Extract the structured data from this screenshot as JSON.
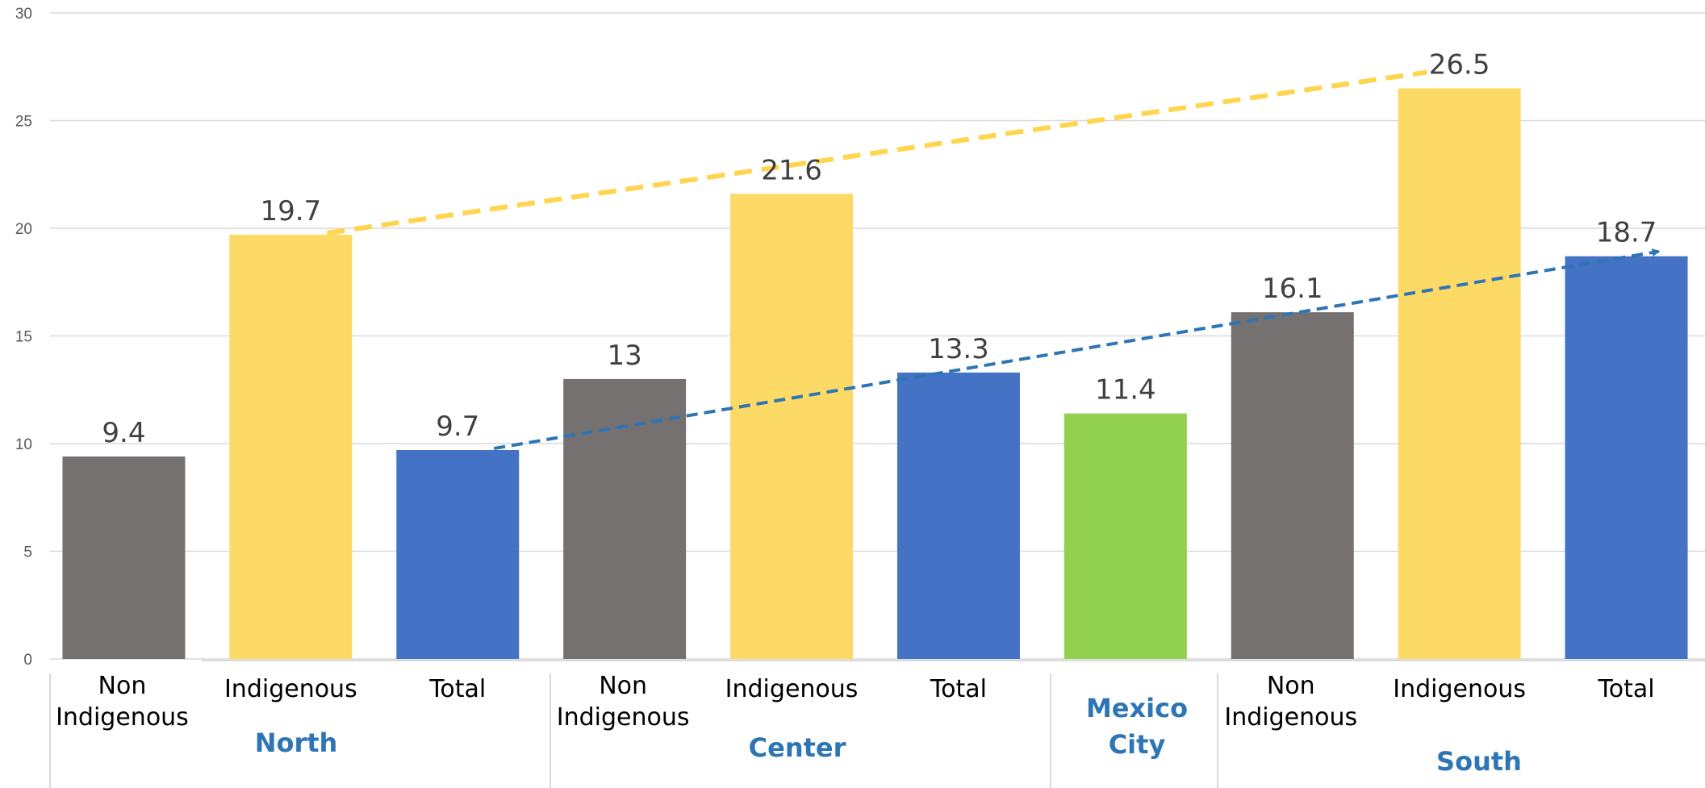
{
  "chart_data": {
    "type": "bar",
    "title": "",
    "ylim": [
      0,
      30
    ],
    "yticks": [
      "0",
      "5",
      "10",
      "15",
      "20",
      "25",
      "30"
    ],
    "grid": true,
    "groups": [
      "North",
      "Center",
      "Mexico City",
      "South"
    ],
    "bars": [
      {
        "group": "North",
        "category": "Non Indigenous",
        "value": 9.4,
        "label": "9.4",
        "color": "#757171"
      },
      {
        "group": "North",
        "category": "Indigenous",
        "value": 19.7,
        "label": "19.7",
        "color": "#fdd966"
      },
      {
        "group": "North",
        "category": "Total",
        "value": 9.7,
        "label": "9.7",
        "color": "#4472c4"
      },
      {
        "group": "Center",
        "category": "Non Indigenous",
        "value": 13,
        "label": "13",
        "color": "#757171"
      },
      {
        "group": "Center",
        "category": "Indigenous",
        "value": 21.6,
        "label": "21.6",
        "color": "#fdd966"
      },
      {
        "group": "Center",
        "category": "Total",
        "value": 13.3,
        "label": "13.3",
        "color": "#4472c4"
      },
      {
        "group": "Mexico City",
        "category": "",
        "value": 11.4,
        "label": "11.4",
        "color": "#92d050"
      },
      {
        "group": "South",
        "category": "Non Indigenous",
        "value": 16.1,
        "label": "16.1",
        "color": "#757171"
      },
      {
        "group": "South",
        "category": "Indigenous",
        "value": 26.5,
        "label": "26.5",
        "color": "#fdd966"
      },
      {
        "group": "South",
        "category": "Total",
        "value": 18.7,
        "label": "18.7",
        "color": "#4472c4"
      }
    ],
    "trendlines": [
      {
        "name": "",
        "from_bar": 1,
        "to_bar": 8,
        "color": "#ffd54f",
        "style": "dashed"
      },
      {
        "name": "",
        "from_bar": 2,
        "to_bar": 9,
        "color": "#2e75b6",
        "style": "dashed-arrow"
      }
    ]
  }
}
